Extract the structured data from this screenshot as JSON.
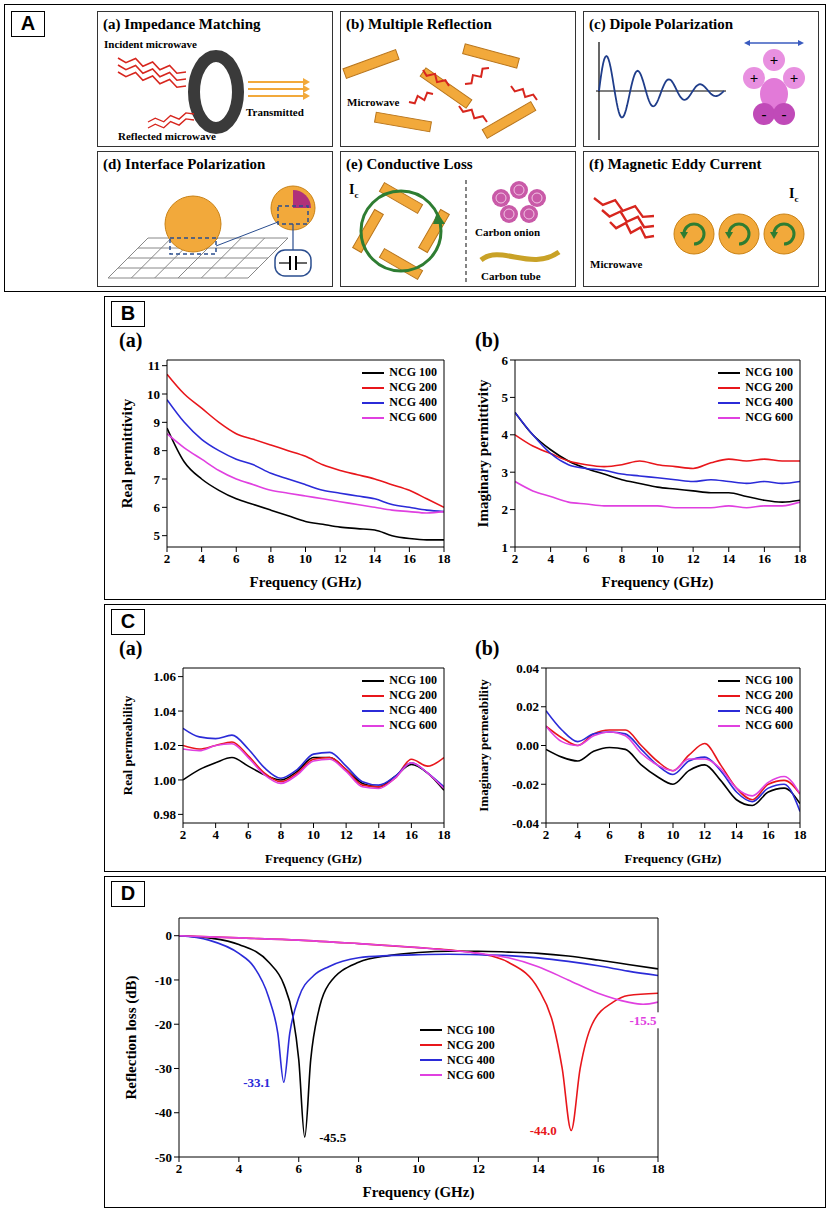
{
  "panel_labels": [
    "A",
    "B",
    "C",
    "D"
  ],
  "diagram": {
    "items": [
      {
        "title": "(a) Impedance Matching",
        "labels": [
          "Incident microwave",
          "Transmitted",
          "Reflected microwave"
        ]
      },
      {
        "title": "(b) Multiple Reflection",
        "labels": [
          "Microwave"
        ]
      },
      {
        "title": "(c) Dipole Polarization",
        "labels": [
          "+",
          "+",
          "+",
          "-",
          "-"
        ]
      },
      {
        "title": "(d) Interface Polarization"
      },
      {
        "title": "(e) Conductive Loss",
        "labels": [
          "Carbon onion",
          "Carbon tube"
        ],
        "current": [
          "I",
          "c"
        ]
      },
      {
        "title": "(f) Magnetic Eddy Current",
        "labels": [
          "Microwave"
        ],
        "current": [
          "I",
          "c"
        ]
      }
    ]
  },
  "chart_data": [
    {
      "type": "line",
      "title": "(a)",
      "x_label": "Frequency (GHz)",
      "y_label": "Real permittivity",
      "xlim": [
        2,
        18
      ],
      "xticks": [
        2,
        4,
        6,
        8,
        10,
        12,
        14,
        16,
        18
      ],
      "ylim": [
        4.6,
        11.2
      ],
      "yticks": [
        5,
        6,
        7,
        8,
        9,
        10,
        11
      ],
      "legend": "upper right",
      "x": [
        2,
        3,
        4,
        5,
        6,
        7,
        8,
        9,
        10,
        11,
        12,
        13,
        14,
        15,
        16,
        17,
        18
      ],
      "series": [
        {
          "name": "NCG 100",
          "color": "#000000",
          "values": [
            8.8,
            7.6,
            7.0,
            6.6,
            6.3,
            6.1,
            5.9,
            5.7,
            5.5,
            5.4,
            5.3,
            5.25,
            5.2,
            5.0,
            4.9,
            4.85,
            4.85
          ]
        },
        {
          "name": "NCG 200",
          "color": "#e8161b",
          "values": [
            10.7,
            10.0,
            9.5,
            9.0,
            8.6,
            8.4,
            8.2,
            8.0,
            7.8,
            7.5,
            7.3,
            7.15,
            7.0,
            6.8,
            6.6,
            6.3,
            6.0
          ]
        },
        {
          "name": "NCG 400",
          "color": "#2b2bd8",
          "values": [
            9.8,
            9.0,
            8.4,
            8.0,
            7.7,
            7.5,
            7.2,
            7.0,
            6.8,
            6.6,
            6.5,
            6.4,
            6.3,
            6.1,
            6.0,
            5.9,
            5.85
          ]
        },
        {
          "name": "NCG 600",
          "color": "#e040e0",
          "values": [
            8.6,
            8.1,
            7.7,
            7.3,
            7.0,
            6.8,
            6.6,
            6.5,
            6.4,
            6.3,
            6.2,
            6.1,
            6.0,
            5.9,
            5.85,
            5.8,
            5.85
          ]
        }
      ]
    },
    {
      "type": "line",
      "title": "(b)",
      "x_label": "Frequency (GHz)",
      "y_label": "Imaginary permittivity",
      "xlim": [
        2,
        18
      ],
      "xticks": [
        2,
        4,
        6,
        8,
        10,
        12,
        14,
        16,
        18
      ],
      "ylim": [
        1,
        6
      ],
      "yticks": [
        1,
        2,
        3,
        4,
        5,
        6
      ],
      "legend": "upper right",
      "x": [
        2,
        3,
        4,
        5,
        6,
        7,
        8,
        9,
        10,
        11,
        12,
        13,
        14,
        15,
        16,
        17,
        18
      ],
      "series": [
        {
          "name": "NCG 100",
          "color": "#000000",
          "values": [
            4.6,
            4.0,
            3.6,
            3.3,
            3.1,
            2.95,
            2.8,
            2.7,
            2.6,
            2.55,
            2.5,
            2.45,
            2.45,
            2.35,
            2.25,
            2.2,
            2.25
          ]
        },
        {
          "name": "NCG 200",
          "color": "#e8161b",
          "values": [
            4.0,
            3.7,
            3.5,
            3.3,
            3.2,
            3.15,
            3.2,
            3.3,
            3.2,
            3.15,
            3.1,
            3.25,
            3.35,
            3.3,
            3.35,
            3.3,
            3.3
          ]
        },
        {
          "name": "NCG 400",
          "color": "#2b2bd8",
          "values": [
            4.6,
            4.0,
            3.5,
            3.2,
            3.1,
            3.05,
            2.95,
            2.9,
            2.85,
            2.8,
            2.75,
            2.8,
            2.75,
            2.7,
            2.75,
            2.7,
            2.75
          ]
        },
        {
          "name": "NCG 600",
          "color": "#e040e0",
          "values": [
            2.75,
            2.5,
            2.35,
            2.2,
            2.15,
            2.1,
            2.1,
            2.1,
            2.1,
            2.05,
            2.05,
            2.05,
            2.1,
            2.05,
            2.1,
            2.1,
            2.2
          ]
        }
      ]
    },
    {
      "type": "line",
      "title": "(a)",
      "x_label": "Frequency (GHz)",
      "y_label": "Real permeability",
      "xlim": [
        2,
        18
      ],
      "xticks": [
        2,
        4,
        6,
        8,
        10,
        12,
        14,
        16,
        18
      ],
      "ylim": [
        0.975,
        1.065
      ],
      "yticks": [
        0.98,
        {
          "value": 1,
          "label": "1.00"
        },
        1.02,
        1.04,
        1.06
      ],
      "legend": "upper right",
      "x": [
        2,
        3,
        4,
        5,
        6,
        7,
        8,
        9,
        10,
        11,
        12,
        13,
        14,
        15,
        16,
        17,
        18
      ],
      "series": [
        {
          "name": "NCG 100",
          "color": "#000000",
          "values": [
            1.0,
            1.006,
            1.01,
            1.013,
            1.008,
            1.003,
            1.0,
            1.005,
            1.013,
            1.013,
            1.006,
            0.998,
            0.996,
            1.002,
            1.009,
            1.004,
            0.994
          ]
        },
        {
          "name": "NCG 200",
          "color": "#e8161b",
          "values": [
            1.02,
            1.018,
            1.02,
            1.022,
            1.014,
            1.004,
            0.999,
            1.004,
            1.012,
            1.013,
            1.006,
            0.997,
            0.996,
            1.001,
            1.012,
            1.008,
            1.013
          ]
        },
        {
          "name": "NCG 400",
          "color": "#2b2bd8",
          "values": [
            1.03,
            1.025,
            1.024,
            1.026,
            1.018,
            1.007,
            1.001,
            1.006,
            1.015,
            1.016,
            1.008,
            0.999,
            0.997,
            1.002,
            1.01,
            1.004,
            0.996
          ]
        },
        {
          "name": "NCG 600",
          "color": "#e040e0",
          "values": [
            1.018,
            1.017,
            1.02,
            1.021,
            1.013,
            1.003,
            0.998,
            1.003,
            1.011,
            1.012,
            1.005,
            0.996,
            0.995,
            1.001,
            1.01,
            1.004,
            0.995
          ]
        }
      ]
    },
    {
      "type": "line",
      "title": "(b)",
      "x_label": "Frequency (GHz)",
      "y_label": "Imaginary permeability",
      "xlim": [
        2,
        18
      ],
      "xticks": [
        2,
        4,
        6,
        8,
        10,
        12,
        14,
        16,
        18
      ],
      "ylim": [
        -0.04,
        0.04
      ],
      "yticks": [
        -0.04,
        -0.02,
        {
          "value": 0,
          "label": "0.00"
        },
        0.02,
        0.04
      ],
      "legend": "upper right",
      "x": [
        2,
        3,
        4,
        5,
        6,
        7,
        8,
        9,
        10,
        11,
        12,
        13,
        14,
        15,
        16,
        17,
        18
      ],
      "series": [
        {
          "name": "NCG 100",
          "color": "#000000",
          "values": [
            -0.002,
            -0.006,
            -0.008,
            -0.003,
            -0.001,
            -0.002,
            -0.01,
            -0.016,
            -0.02,
            -0.013,
            -0.01,
            -0.018,
            -0.028,
            -0.031,
            -0.024,
            -0.022,
            -0.03
          ]
        },
        {
          "name": "NCG 200",
          "color": "#e8161b",
          "values": [
            0.01,
            0.004,
            0.0,
            0.006,
            0.008,
            0.008,
            0.0,
            -0.008,
            -0.013,
            -0.005,
            0.001,
            -0.01,
            -0.022,
            -0.028,
            -0.02,
            -0.018,
            -0.025
          ]
        },
        {
          "name": "NCG 400",
          "color": "#2b2bd8",
          "values": [
            0.018,
            0.008,
            0.002,
            0.006,
            0.007,
            0.006,
            -0.002,
            -0.01,
            -0.015,
            -0.008,
            -0.006,
            -0.013,
            -0.024,
            -0.029,
            -0.022,
            -0.02,
            -0.034
          ]
        },
        {
          "name": "NCG 600",
          "color": "#e040e0",
          "values": [
            0.01,
            0.002,
            0.0,
            0.005,
            0.007,
            0.005,
            -0.004,
            -0.01,
            -0.013,
            -0.007,
            -0.007,
            -0.012,
            -0.022,
            -0.026,
            -0.019,
            -0.016,
            -0.025
          ]
        }
      ]
    },
    {
      "type": "line",
      "x_label": "Frequency (GHz)",
      "y_label": "Reflection loss (dB)",
      "xlim": [
        2,
        18
      ],
      "xticks": [
        2,
        4,
        6,
        8,
        10,
        12,
        14,
        16,
        18
      ],
      "ylim": [
        -50,
        4
      ],
      "yticks": [
        -50,
        -40,
        -30,
        -20,
        -10,
        0
      ],
      "legend": "bottom",
      "series": [
        {
          "name": "NCG 100",
          "color": "#000000",
          "x": [
            2,
            3,
            4,
            5,
            5.5,
            5.8,
            6,
            6.2,
            6.4,
            6.7,
            7,
            8,
            9,
            10,
            11,
            12,
            13,
            14,
            15,
            16,
            17,
            18
          ],
          "values": [
            0,
            -0.5,
            -2,
            -6,
            -11,
            -18,
            -28,
            -45.5,
            -28,
            -16,
            -11,
            -6,
            -4.5,
            -3.8,
            -3.5,
            -3.5,
            -3.7,
            -4,
            -4.6,
            -5.5,
            -6.5,
            -7.5
          ]
        },
        {
          "name": "NCG 200",
          "color": "#e8161b",
          "x": [
            2,
            4,
            6,
            8,
            10,
            11,
            12,
            13,
            14,
            14.5,
            14.8,
            15.1,
            15.4,
            15.8,
            16.5,
            17,
            18
          ],
          "values": [
            0,
            -0.5,
            -1,
            -1.8,
            -2.7,
            -3.2,
            -4,
            -6,
            -12,
            -20,
            -30,
            -44,
            -30,
            -20,
            -15,
            -13.5,
            -13
          ]
        },
        {
          "name": "NCG 400",
          "color": "#2b2bd8",
          "x": [
            2,
            3,
            4,
            4.5,
            5,
            5.3,
            5.5,
            5.7,
            6,
            6.5,
            7,
            8,
            9,
            10,
            11,
            12,
            13,
            14,
            15,
            16,
            17,
            18
          ],
          "values": [
            0,
            -1,
            -4,
            -7,
            -14,
            -22,
            -33.1,
            -22,
            -14,
            -9,
            -7,
            -5,
            -4.5,
            -4.3,
            -4.2,
            -4.3,
            -4.5,
            -5,
            -5.8,
            -6.8,
            -8,
            -9
          ]
        },
        {
          "name": "NCG 600",
          "color": "#e040e0",
          "x": [
            2,
            4,
            6,
            8,
            10,
            12,
            13,
            14,
            15,
            16,
            17,
            17.5,
            18
          ],
          "values": [
            0,
            -0.5,
            -1,
            -1.8,
            -2.7,
            -4,
            -5,
            -7,
            -10,
            -13,
            -15,
            -15.5,
            -15
          ]
        }
      ],
      "annotations": [
        {
          "text": "-33.1",
          "x": 5.5,
          "y": -33.1,
          "color": "#2b2bd8"
        },
        {
          "text": "-45.5",
          "x": 6.2,
          "y": -45.5,
          "color": "#000000"
        },
        {
          "text": "-44.0",
          "x": 15.1,
          "y": -44,
          "color": "#e8161b"
        },
        {
          "text": "-15.5",
          "x": 17.5,
          "y": -15.5,
          "color": "#e040e0"
        }
      ]
    }
  ]
}
